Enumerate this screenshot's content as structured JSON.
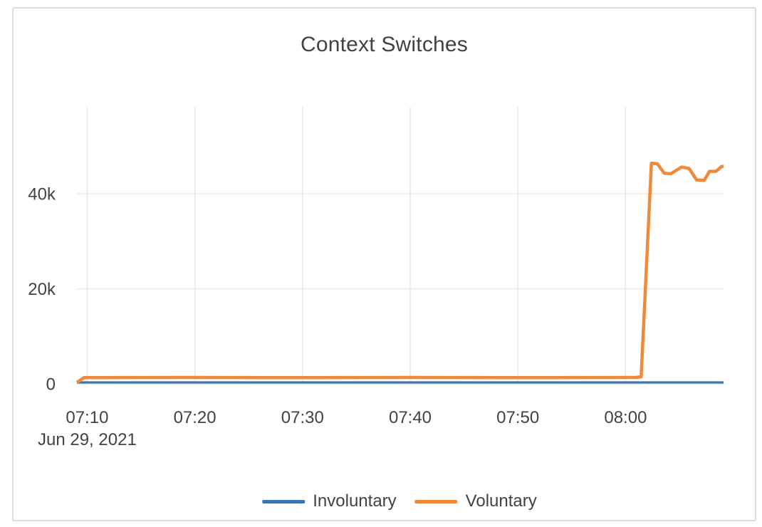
{
  "card": {
    "background": "#ffffff",
    "border_color": "#dcdcdc"
  },
  "chart_data": {
    "type": "line",
    "title": "Context Switches",
    "date_label": "Jun 29, 2021",
    "x_axis": {
      "tick_labels": [
        "07:10",
        "07:20",
        "07:30",
        "07:40",
        "07:50",
        "08:00"
      ],
      "tick_minutes_after_0700": [
        10,
        20,
        30,
        40,
        50,
        60
      ],
      "range_minutes_after_0700": [
        9.05,
        69.1
      ],
      "date_label_anchor_minute": 10
    },
    "y_axis": {
      "tick_labels": [
        "0",
        "20k",
        "40k"
      ],
      "tick_values": [
        0,
        20000,
        40000
      ],
      "gridline_values": [
        20000,
        40000
      ],
      "range": [
        0,
        58300
      ]
    },
    "grid": true,
    "gridline_color": "#e9e9e9",
    "axis_text_color": "#3f4347",
    "legend_position": "bottom-center",
    "series": [
      {
        "name": "Involuntary",
        "color": "#3a76ad",
        "points": [
          [
            9.05,
            300
          ],
          [
            69.1,
            300
          ]
        ]
      },
      {
        "name": "Voluntary",
        "color": "#ef8a3b",
        "points": [
          [
            9.05,
            300
          ],
          [
            9.7,
            1300
          ],
          [
            20,
            1350
          ],
          [
            30,
            1300
          ],
          [
            40,
            1350
          ],
          [
            50,
            1300
          ],
          [
            61.0,
            1350
          ],
          [
            61.45,
            1500
          ],
          [
            62.4,
            46400
          ],
          [
            62.95,
            46300
          ],
          [
            63.6,
            44300
          ],
          [
            64.2,
            44200
          ],
          [
            65.2,
            45600
          ],
          [
            65.9,
            45300
          ],
          [
            66.6,
            42900
          ],
          [
            67.3,
            42800
          ],
          [
            67.8,
            44700
          ],
          [
            68.4,
            44700
          ],
          [
            68.9,
            45700
          ],
          [
            69.1,
            45800
          ]
        ]
      }
    ]
  }
}
